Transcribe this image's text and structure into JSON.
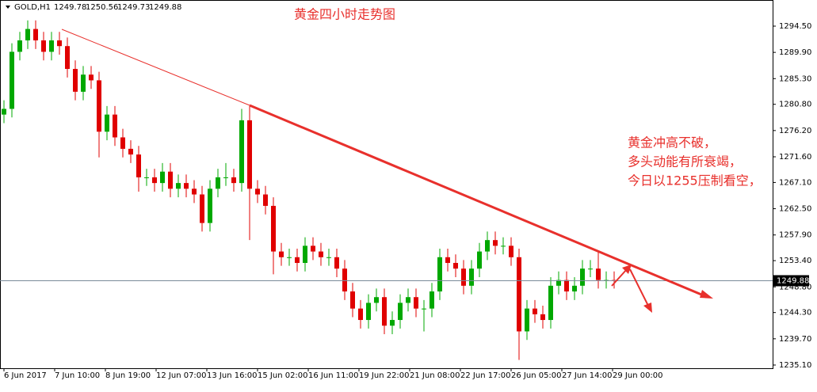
{
  "chart_data": {
    "type": "candlestick",
    "header": {
      "symbol": "GOLD,H1",
      "open": 1249.78,
      "high": 1250.56,
      "low": 1249.73,
      "close": 1249.88
    },
    "title": "黄金四小时走势图",
    "annotations": [
      "黄金冲高不破，",
      "多头动能有所衰竭，",
      "今日以1255压制看空，"
    ],
    "up_color": "#00a800",
    "down_color": "#e00000",
    "last_price": 1249.88,
    "x": [
      0,
      5,
      10,
      15,
      20,
      25,
      30,
      35,
      40,
      45,
      50,
      55,
      60,
      65,
      70,
      75,
      80,
      85,
      90,
      95,
      100,
      105,
      110,
      115,
      120,
      125,
      130,
      135,
      140,
      145,
      150,
      155,
      160,
      165,
      170,
      175,
      180,
      185,
      190,
      195,
      200,
      205,
      210,
      215,
      220,
      225,
      230,
      235,
      240,
      245,
      250,
      255,
      260,
      265,
      270,
      275,
      280,
      285,
      290,
      295,
      300,
      305,
      310,
      315,
      320,
      325,
      330,
      335,
      340,
      345,
      350,
      355,
      360,
      365,
      370,
      375,
      380,
      385
    ],
    "open": [
      1279,
      1280,
      1290,
      1292,
      1294,
      1292,
      1290,
      1292,
      1291,
      1287,
      1283,
      1286,
      1285,
      1276,
      1279,
      1275,
      1273,
      1272,
      1268,
      1268,
      1267,
      1269,
      1266,
      1267,
      1266,
      1265,
      1260,
      1266,
      1268,
      1268,
      1267,
      1278,
      1266,
      1265,
      1263,
      1255,
      1254,
      1254,
      1253,
      1256,
      1255,
      1254,
      1254,
      1252,
      1248,
      1245,
      1243,
      1246,
      1247,
      1242,
      1243,
      1246,
      1247,
      1245,
      1245,
      1248,
      1254,
      1253,
      1252,
      1249,
      1252,
      1255,
      1257,
      1256,
      1256,
      1254,
      1241,
      1245,
      1244,
      1243,
      1249,
      1250,
      1248,
      1249,
      1252,
      1252,
      1250,
      1250
    ],
    "high": [
      1281.5,
      1291.5,
      1293.5,
      1295.5,
      1295.5,
      1293.5,
      1293.5,
      1293.5,
      1292.5,
      1288.5,
      1287.5,
      1287.5,
      1286.5,
      1280.5,
      1280.5,
      1276.5,
      1274.5,
      1273.5,
      1269.5,
      1269.5,
      1270.5,
      1270.5,
      1268.5,
      1268.5,
      1267.5,
      1266.5,
      1267.5,
      1269.5,
      1270.5,
      1269.5,
      1280,
      1280.5,
      1267.5,
      1266.5,
      1264.5,
      1256.5,
      1255.5,
      1255.5,
      1257.5,
      1257.5,
      1256.5,
      1255.5,
      1255.5,
      1253.5,
      1249.5,
      1246.5,
      1247.5,
      1248.5,
      1248.5,
      1244.5,
      1247.5,
      1248.5,
      1248.5,
      1246.5,
      1249.5,
      1255.5,
      1255.5,
      1254.5,
      1253.5,
      1253.5,
      1256.5,
      1258.5,
      1258.5,
      1257.5,
      1257.5,
      1255.5,
      1246.5,
      1246.5,
      1245.5,
      1250.5,
      1251.5,
      1251.5,
      1250.5,
      1253.5,
      1253.5,
      1255,
      1251.5,
      1251.5
    ],
    "low": [
      1277.5,
      1278.5,
      1288.5,
      1290.5,
      1290.5,
      1288.5,
      1288.5,
      1289.5,
      1285.5,
      1281.5,
      1281.5,
      1283.5,
      1271.5,
      1274.5,
      1273.5,
      1271.5,
      1270.5,
      1265.5,
      1266.5,
      1265.5,
      1265.5,
      1264.5,
      1264.5,
      1264.5,
      1263.5,
      1258.5,
      1258.5,
      1264.5,
      1266.5,
      1265.5,
      1265.5,
      1257,
      1263.5,
      1261.5,
      1251,
      1252.5,
      1252.5,
      1251.5,
      1251.5,
      1253.5,
      1252.5,
      1252.5,
      1250.5,
      1246.5,
      1243.5,
      1241.5,
      1241.5,
      1244.5,
      1240.5,
      1240.5,
      1241.5,
      1244.5,
      1243.5,
      1241,
      1243.5,
      1246.5,
      1251.5,
      1250.5,
      1247.5,
      1247.5,
      1250.5,
      1253.5,
      1254.5,
      1254.5,
      1252.5,
      1236,
      1239.5,
      1242.5,
      1241.5,
      1241.5,
      1247.5,
      1246.5,
      1246.5,
      1247.5,
      1250.5,
      1248.5,
      1248.5,
      1248.5
    ],
    "close": [
      1280,
      1290,
      1292,
      1294,
      1292,
      1290,
      1292,
      1291,
      1287,
      1283,
      1286,
      1285,
      1276,
      1279,
      1275,
      1273,
      1272,
      1268,
      1268,
      1267,
      1269,
      1266,
      1267,
      1266,
      1265,
      1260,
      1266,
      1268,
      1268,
      1267,
      1278,
      1266,
      1265,
      1263,
      1255,
      1254,
      1254,
      1253,
      1256,
      1255,
      1254,
      1254,
      1252,
      1248,
      1245,
      1243,
      1246,
      1247,
      1242,
      1243,
      1246,
      1247,
      1245,
      1245,
      1248,
      1254,
      1253,
      1252,
      1249,
      1252,
      1255,
      1257,
      1256,
      1256,
      1254,
      1241,
      1245,
      1244,
      1243,
      1249,
      1250,
      1248,
      1249,
      1252,
      1252,
      1250,
      1250,
      1249.88
    ],
    "xlim": [
      -2.5,
      485
    ],
    "xticks": [
      {
        "value": 0,
        "label": "6 Jun 2017"
      },
      {
        "value": 32,
        "label": "7 Jun 10:00"
      },
      {
        "value": 64,
        "label": "8 Jun 19:00"
      },
      {
        "value": 96,
        "label": "12 Jun 07:00"
      },
      {
        "value": 128,
        "label": "13 Jun 16:00"
      },
      {
        "value": 160,
        "label": "15 Jun 02:00"
      },
      {
        "value": 192,
        "label": "16 Jun 11:00"
      },
      {
        "value": 224,
        "label": "19 Jun 22:00"
      },
      {
        "value": 256,
        "label": "21 Jun 08:00"
      },
      {
        "value": 288,
        "label": "22 Jun 17:00"
      },
      {
        "value": 320,
        "label": "26 Jun 05:00"
      },
      {
        "value": 352,
        "label": "27 Jun 14:00"
      },
      {
        "value": 384,
        "label": "29 Jun 00:00"
      }
    ],
    "ylim": [
      1234.54,
      1299.08
    ],
    "yticks": [
      {
        "value": 1294.5,
        "label": "1294.50"
      },
      {
        "value": 1289.9,
        "label": "1289.90"
      },
      {
        "value": 1285.3,
        "label": "1285.30"
      },
      {
        "value": 1280.8,
        "label": "1280.80"
      },
      {
        "value": 1276.2,
        "label": "1276.20"
      },
      {
        "value": 1271.6,
        "label": "1271.60"
      },
      {
        "value": 1267.1,
        "label": "1267.10"
      },
      {
        "value": 1262.5,
        "label": "1262.50"
      },
      {
        "value": 1257.9,
        "label": "1257.90"
      },
      {
        "value": 1253.4,
        "label": "1253.40"
      },
      {
        "value": 1248.8,
        "label": "1248.80"
      },
      {
        "value": 1244.3,
        "label": "1244.30"
      },
      {
        "value": 1239.7,
        "label": "1239.70"
      },
      {
        "value": 1235.1,
        "label": "1235.10"
      }
    ]
  }
}
